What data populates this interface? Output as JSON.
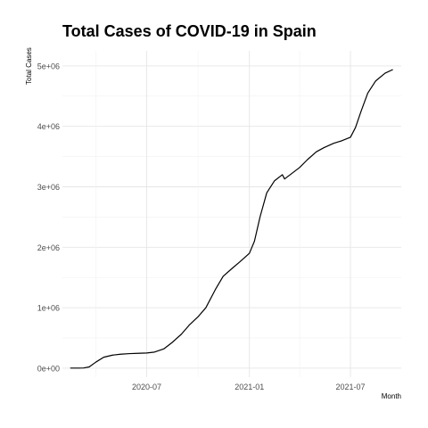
{
  "chart_data": {
    "type": "line",
    "title": "Total Cases of COVID-19 in Spain",
    "xlabel": "Month",
    "ylabel": "Total Cases",
    "x_ticks": [
      "2020-07",
      "2021-01",
      "2021-07"
    ],
    "y_ticks": [
      "0e+00",
      "1e+06",
      "2e+06",
      "3e+06",
      "4e+06",
      "5e+06"
    ],
    "xlim": [
      "2020-02-01",
      "2021-09-30"
    ],
    "ylim": [
      -150000,
      5250000
    ],
    "grid": true,
    "line_color": "#000000",
    "series": [
      {
        "x": [
          "2020-02-15",
          "2020-03-01",
          "2020-03-10",
          "2020-03-20",
          "2020-04-01",
          "2020-04-15",
          "2020-05-01",
          "2020-05-15",
          "2020-06-01",
          "2020-06-15",
          "2020-07-01",
          "2020-07-15",
          "2020-08-01",
          "2020-08-15",
          "2020-09-01",
          "2020-09-15",
          "2020-10-01",
          "2020-10-15",
          "2020-11-01",
          "2020-11-15",
          "2020-12-01",
          "2020-12-15",
          "2021-01-01",
          "2021-01-10",
          "2021-01-20",
          "2021-02-01",
          "2021-02-15",
          "2021-03-01",
          "2021-03-05",
          "2021-03-15",
          "2021-04-01",
          "2021-04-15",
          "2021-05-01",
          "2021-05-15",
          "2021-06-01",
          "2021-06-15",
          "2021-07-01",
          "2021-07-10",
          "2021-07-20",
          "2021-08-01",
          "2021-08-15",
          "2021-09-01",
          "2021-09-15"
        ],
        "y": [
          0,
          0,
          2000,
          20000,
          100000,
          180000,
          215000,
          230000,
          240000,
          245000,
          250000,
          265000,
          320000,
          420000,
          560000,
          710000,
          850000,
          1000000,
          1300000,
          1520000,
          1650000,
          1760000,
          1900000,
          2100000,
          2500000,
          2900000,
          3100000,
          3200000,
          3130000,
          3200000,
          3320000,
          3450000,
          3580000,
          3650000,
          3720000,
          3760000,
          3820000,
          3980000,
          4250000,
          4550000,
          4750000,
          4880000,
          4940000
        ]
      }
    ]
  }
}
